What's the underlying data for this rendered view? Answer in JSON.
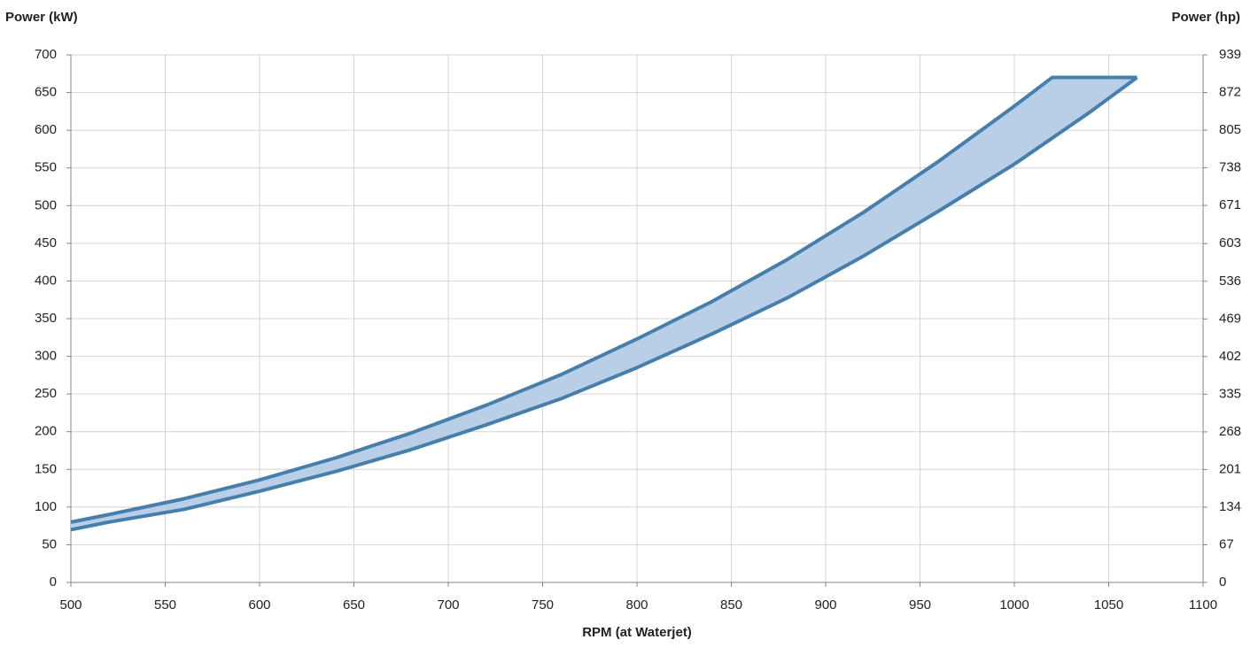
{
  "chart_data": {
    "type": "band",
    "y_title": "Power (kW)",
    "y2_title": "Power (hp)",
    "x_title": "RPM (at Waterjet)",
    "xlim": [
      500,
      1100
    ],
    "xticks": [
      500,
      550,
      600,
      650,
      700,
      750,
      800,
      850,
      900,
      950,
      1000,
      1050,
      1100
    ],
    "ylim": [
      0,
      700
    ],
    "yticks": [
      0,
      50,
      100,
      150,
      200,
      250,
      300,
      350,
      400,
      450,
      500,
      550,
      600,
      650,
      700
    ],
    "y2lim": [
      0,
      939
    ],
    "y2ticks": [
      0,
      67,
      134,
      201,
      268,
      335,
      402,
      469,
      536,
      603,
      671,
      738,
      805,
      872,
      939
    ],
    "grid": true,
    "fill_color": "#b8cfe7",
    "series": [
      {
        "color": "#467fac",
        "x": [
          500,
          520,
          560,
          600,
          640,
          680,
          720,
          760,
          800,
          840,
          880,
          920,
          960,
          1000,
          1020,
          1065
        ],
        "values": [
          80,
          90,
          111,
          136,
          165,
          198,
          235,
          276,
          323,
          373,
          429,
          491,
          559,
          632,
          670,
          670
        ]
      },
      {
        "color": "#467fac",
        "x": [
          500,
          520,
          560,
          600,
          640,
          680,
          720,
          760,
          800,
          840,
          880,
          920,
          960,
          1000,
          1040,
          1065
        ],
        "values": [
          70,
          80,
          97,
          121,
          147,
          176,
          209,
          244,
          285,
          330,
          378,
          433,
          493,
          555,
          624,
          670
        ]
      }
    ]
  }
}
